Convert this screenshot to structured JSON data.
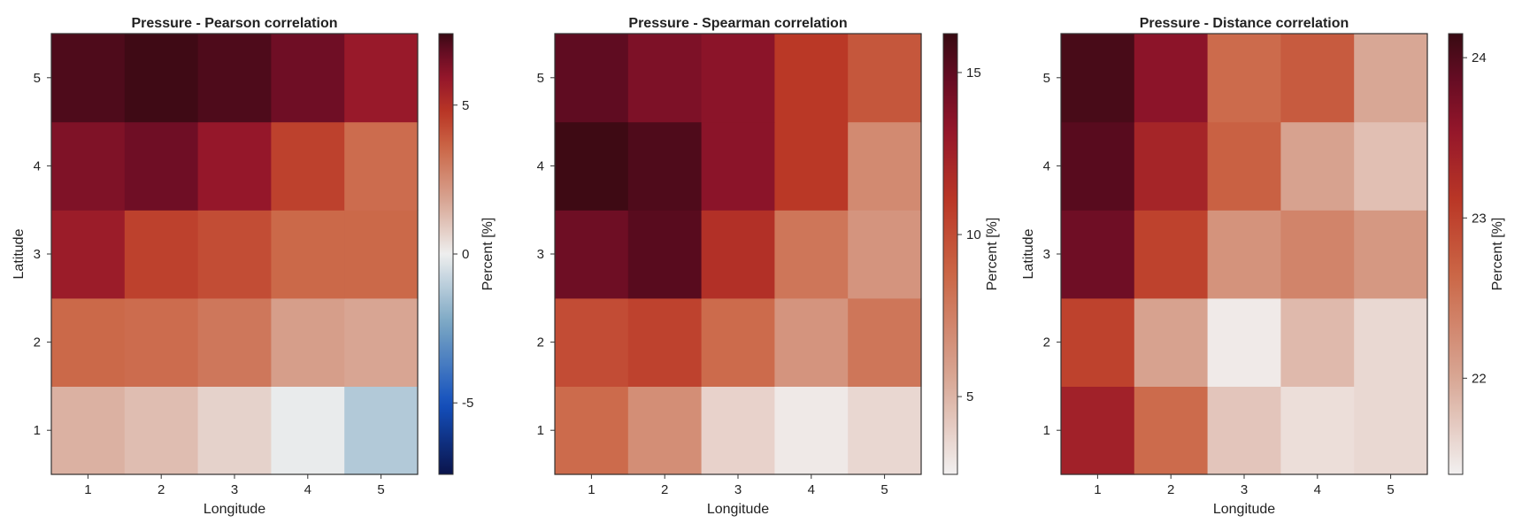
{
  "chart_data": [
    {
      "type": "heatmap",
      "title": "Pressure - Pearson correlation",
      "xlabel": "Longitude",
      "ylabel": "Latitude",
      "x": [
        1,
        2,
        3,
        4,
        5
      ],
      "y": [
        1,
        2,
        3,
        4,
        5
      ],
      "values": [
        [
          1.5,
          1.2,
          0.7,
          -0.1,
          -1.2
        ],
        [
          3.5,
          3.4,
          3.1,
          2.0,
          1.8
        ],
        [
          5.7,
          4.5,
          4.2,
          3.5,
          3.5
        ],
        [
          6.3,
          6.6,
          5.9,
          4.5,
          3.4
        ],
        [
          7.1,
          7.3,
          7.1,
          6.6,
          5.8
        ]
      ],
      "colorbar": {
        "label": "Percent [%]",
        "range": [
          -7.4,
          7.4
        ],
        "ticks": [
          -5,
          0,
          5
        ],
        "colormap": "diverging-blue-white-red"
      }
    },
    {
      "type": "heatmap",
      "title": "Pressure - Spearman correlation",
      "xlabel": "Longitude",
      "ylabel": "",
      "x": [
        1,
        2,
        3,
        4,
        5
      ],
      "y": [
        1,
        2,
        3,
        4,
        5
      ],
      "values": [
        [
          8.5,
          6.8,
          3.8,
          2.9,
          3.6
        ],
        [
          10.0,
          10.5,
          8.5,
          6.5,
          8.0
        ],
        [
          14.5,
          15.2,
          11.5,
          8.0,
          6.5
        ],
        [
          16.0,
          15.5,
          13.5,
          11.0,
          7.0
        ],
        [
          15.0,
          14.0,
          13.5,
          11.0,
          9.5
        ]
      ],
      "colorbar": {
        "label": "Percent [%]",
        "range": [
          2.6,
          16.2
        ],
        "ticks": [
          5,
          10,
          15
        ],
        "colormap": "sequential-white-red"
      }
    },
    {
      "type": "heatmap",
      "title": "Pressure - Distance correlation",
      "xlabel": "Longitude",
      "ylabel": "Latitude",
      "x": [
        1,
        2,
        3,
        4,
        5
      ],
      "y": [
        1,
        2,
        3,
        4,
        5
      ],
      "values": [
        [
          23.4,
          22.6,
          21.75,
          21.55,
          21.6
        ],
        [
          23.0,
          22.05,
          21.45,
          21.85,
          21.6
        ],
        [
          23.8,
          23.0,
          22.2,
          22.35,
          22.15
        ],
        [
          23.95,
          23.35,
          22.7,
          22.05,
          21.8
        ],
        [
          24.05,
          23.6,
          22.6,
          22.75,
          22.0
        ]
      ],
      "colorbar": {
        "label": "Percent [%]",
        "range": [
          21.4,
          24.15
        ],
        "ticks": [
          22,
          23,
          24
        ],
        "colormap": "sequential-white-red"
      }
    }
  ]
}
